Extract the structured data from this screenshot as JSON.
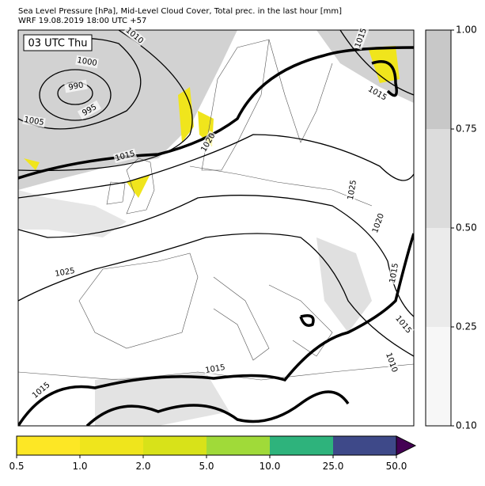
{
  "header": {
    "line1": "Sea Level Pressure [hPa], Mid-Level Cloud Cover, Total prec. in the last hour [mm]",
    "line2": "WRF 19.08.2019 18:00 UTC +57"
  },
  "map": {
    "time_label": "03 UTC Thu",
    "contour_labels": [
      "1010",
      "1000",
      "990",
      "995",
      "1005",
      "1015",
      "1020",
      "1015",
      "1015",
      "1025",
      "1020",
      "1025",
      "1015",
      "1015",
      "1010",
      "1015",
      "1015"
    ]
  },
  "cloud_colorbar": {
    "labels": [
      "0.10",
      "0.25",
      "0.50",
      "0.75",
      "1.00"
    ],
    "colors": [
      "#f7f7f7",
      "#ebebeb",
      "#dcdcdc",
      "#c8c8c8"
    ]
  },
  "precip_colorbar": {
    "labels": [
      "0.5",
      "1.0",
      "2.0",
      "5.0",
      "10.0",
      "25.0",
      "50.0"
    ],
    "colors": [
      "#fde725",
      "#efe51c",
      "#d8e219",
      "#a0da39",
      "#2eb37c",
      "#3e4989"
    ],
    "extend_color": "#440154"
  }
}
